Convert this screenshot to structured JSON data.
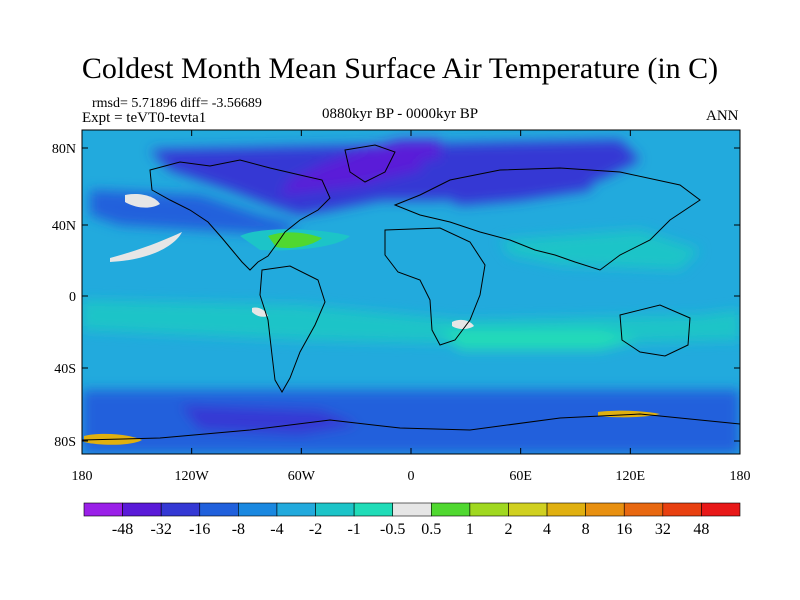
{
  "header": {
    "title": "Coldest Month Mean Surface Air Temperature (in C)",
    "stats": "rmsd= 5.71896 diff= -3.56689",
    "experiment": "Expt = teVT0-tevta1",
    "period": "0880kyr BP - 0000kyr BP",
    "season": "ANN"
  },
  "map": {
    "projection": "cylindrical-equidistant",
    "ocean_base_color": "#22aadd",
    "coastline_color": "#000000",
    "lon_ticks": [
      "180",
      "120W",
      "60W",
      "0",
      "60E",
      "120E",
      "180"
    ],
    "lat_ticks": [
      "80N",
      "40N",
      "0",
      "40S",
      "80S"
    ]
  },
  "colorbar": {
    "colors": [
      "#9a20e8",
      "#5a1ad8",
      "#3438d4",
      "#2060dc",
      "#1a88e0",
      "#22aadd",
      "#1cc4c8",
      "#20dcb8",
      "#e6e6e6",
      "#50d830",
      "#a0d820",
      "#d0d020",
      "#e0b010",
      "#e89010",
      "#e86810",
      "#e84010",
      "#e81818"
    ],
    "labels": [
      "-48",
      "-32",
      "-16",
      "-8",
      "-4",
      "-2",
      "-1",
      "-0.5",
      "0.5",
      "1",
      "2",
      "4",
      "8",
      "16",
      "32",
      "48"
    ]
  }
}
